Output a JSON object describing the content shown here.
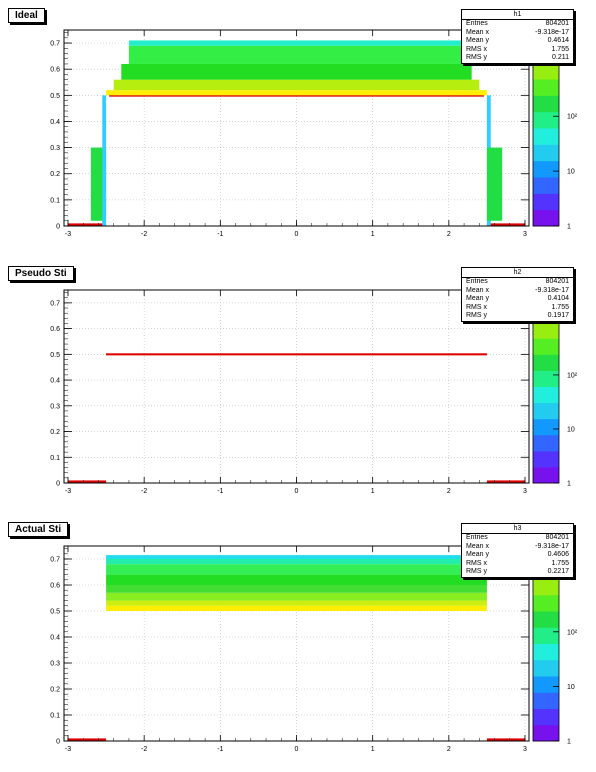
{
  "pads": [
    {
      "title": "Ideal",
      "stats": {
        "name": "h1",
        "rows": [
          {
            "label": "Entries",
            "value": "804201"
          },
          {
            "label": "Mean x",
            "value": "-9.318e-17"
          },
          {
            "label": "Mean y",
            "value": "0.4614"
          },
          {
            "label": "RMS x",
            "value": "1.755"
          },
          {
            "label": "RMS y",
            "value": "0.211"
          }
        ]
      }
    },
    {
      "title": "Pseudo Sti",
      "stats": {
        "name": "h2",
        "rows": [
          {
            "label": "Entries",
            "value": "804201"
          },
          {
            "label": "Mean x",
            "value": "-9.318e-17"
          },
          {
            "label": "Mean y",
            "value": "0.4104"
          },
          {
            "label": "RMS x",
            "value": "1.755"
          },
          {
            "label": "RMS y",
            "value": "0.1917"
          }
        ]
      }
    },
    {
      "title": "Actual Sti",
      "stats": {
        "name": "h3",
        "rows": [
          {
            "label": "Entries",
            "value": "804201"
          },
          {
            "label": "Mean x",
            "value": "-9.318e-17"
          },
          {
            "label": "Mean y",
            "value": "0.4606"
          },
          {
            "label": "RMS x",
            "value": "1.755"
          },
          {
            "label": "RMS y",
            "value": "0.2217"
          }
        ]
      }
    }
  ],
  "chart_data": [
    {
      "type": "heatmap",
      "xlim": [
        -3.2,
        3.2
      ],
      "ylim": [
        0,
        0.75
      ],
      "x_ticks": [
        "-3",
        "-2",
        "-1",
        "0",
        "1",
        "2",
        "3"
      ],
      "y_ticks": [
        "0",
        "0.1",
        "0.2",
        "0.3",
        "0.4",
        "0.5",
        "0.6",
        "0.7"
      ],
      "z_ticks": [
        "1",
        "10",
        "10²"
      ],
      "z_scale": "log",
      "grid": true,
      "bands": [
        {
          "x": [
            -3.0,
            -2.5
          ],
          "y": [
            0.0,
            0.01
          ],
          "color": "#dd0000"
        },
        {
          "x": [
            2.5,
            3.0
          ],
          "y": [
            0.0,
            0.01
          ],
          "color": "#dd0000"
        },
        {
          "x": [
            -2.46,
            2.46
          ],
          "y": [
            0.495,
            0.505
          ],
          "color": "#dd0000"
        },
        {
          "x": [
            -2.5,
            2.5
          ],
          "y": [
            0.5,
            0.52
          ],
          "color": "#ffee00"
        },
        {
          "x": [
            -2.4,
            2.4
          ],
          "y": [
            0.52,
            0.56
          ],
          "color": "#b6ee10"
        },
        {
          "x": [
            -2.3,
            2.3
          ],
          "y": [
            0.56,
            0.62
          ],
          "color": "#22dd22"
        },
        {
          "x": [
            -2.2,
            2.2
          ],
          "y": [
            0.62,
            0.69
          ],
          "color": "#33ee44"
        },
        {
          "x": [
            -2.2,
            2.2
          ],
          "y": [
            0.69,
            0.71
          ],
          "color": "#22eecc"
        },
        {
          "x": [
            -2.7,
            -2.5
          ],
          "y": [
            0.02,
            0.3
          ],
          "color": "#22dd44"
        },
        {
          "x": [
            -2.55,
            -2.5
          ],
          "y": [
            0.0,
            0.5
          ],
          "color": "#33ccff"
        },
        {
          "x": [
            2.5,
            2.55
          ],
          "y": [
            0.0,
            0.5
          ],
          "color": "#33ccff"
        },
        {
          "x": [
            2.5,
            2.7
          ],
          "y": [
            0.02,
            0.3
          ],
          "color": "#22dd44"
        }
      ]
    },
    {
      "type": "heatmap",
      "xlim": [
        -3.2,
        3.2
      ],
      "ylim": [
        0,
        0.75
      ],
      "x_ticks": [
        "-3",
        "-2",
        "-1",
        "0",
        "1",
        "2",
        "3"
      ],
      "y_ticks": [
        "0",
        "0.1",
        "0.2",
        "0.3",
        "0.4",
        "0.5",
        "0.6",
        "0.7"
      ],
      "z_ticks": [
        "1",
        "10",
        "10²"
      ],
      "z_scale": "log",
      "grid": true,
      "bands": [
        {
          "x": [
            -3.0,
            -2.5
          ],
          "y": [
            0.0,
            0.01
          ],
          "color": "#dd0000"
        },
        {
          "x": [
            2.5,
            3.0
          ],
          "y": [
            0.0,
            0.01
          ],
          "color": "#dd0000"
        },
        {
          "x": [
            -2.5,
            2.5
          ],
          "y": [
            0.496,
            0.504
          ],
          "color": "#dd0000"
        }
      ]
    },
    {
      "type": "heatmap",
      "xlim": [
        -3.2,
        3.2
      ],
      "ylim": [
        0,
        0.75
      ],
      "x_ticks": [
        "-3",
        "-2",
        "-1",
        "0",
        "1",
        "2",
        "3"
      ],
      "y_ticks": [
        "0",
        "0.1",
        "0.2",
        "0.3",
        "0.4",
        "0.5",
        "0.6",
        "0.7"
      ],
      "z_ticks": [
        "1",
        "10",
        "10²"
      ],
      "z_scale": "log",
      "grid": true,
      "bands": [
        {
          "x": [
            -3.0,
            -2.5
          ],
          "y": [
            0.0,
            0.01
          ],
          "color": "#dd0000"
        },
        {
          "x": [
            2.5,
            3.0
          ],
          "y": [
            0.0,
            0.01
          ],
          "color": "#dd0000"
        },
        {
          "x": [
            -2.5,
            2.5
          ],
          "y": [
            0.5,
            0.52
          ],
          "color": "#ffee00"
        },
        {
          "x": [
            -2.5,
            2.5
          ],
          "y": [
            0.52,
            0.54
          ],
          "color": "#ccee11"
        },
        {
          "x": [
            -2.5,
            2.5
          ],
          "y": [
            0.54,
            0.57
          ],
          "color": "#88ee22"
        },
        {
          "x": [
            -2.5,
            2.5
          ],
          "y": [
            0.57,
            0.6
          ],
          "color": "#44dd33"
        },
        {
          "x": [
            -2.5,
            2.5
          ],
          "y": [
            0.6,
            0.64
          ],
          "color": "#22dd22"
        },
        {
          "x": [
            -2.5,
            2.5
          ],
          "y": [
            0.64,
            0.68
          ],
          "color": "#33ee55"
        },
        {
          "x": [
            -2.5,
            2.5
          ],
          "y": [
            0.68,
            0.7
          ],
          "color": "#22eeaa"
        },
        {
          "x": [
            -2.5,
            2.5
          ],
          "y": [
            0.7,
            0.715
          ],
          "color": "#22ddee"
        }
      ]
    }
  ],
  "palette": [
    "#7711ee",
    "#5533ff",
    "#3366ff",
    "#1199ff",
    "#22ccee",
    "#22eedd",
    "#22ee88",
    "#22dd44",
    "#55ee22",
    "#99ee11",
    "#ddee00",
    "#ffee00"
  ]
}
